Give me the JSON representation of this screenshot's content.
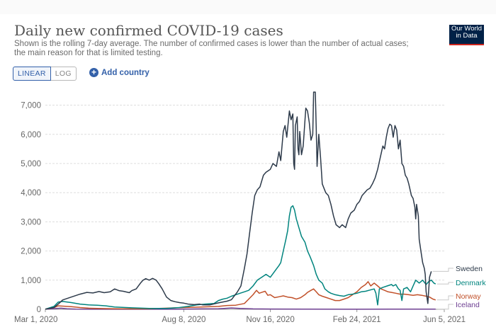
{
  "header": {
    "title": "Daily new confirmed COVID-19 cases",
    "subtitle": "Shown is the rolling 7-day average. The number of confirmed cases is lower than the number of actual cases; the main reason for that is limited testing."
  },
  "logo": {
    "line1": "Our World",
    "line2": "in Data"
  },
  "controls": {
    "linear_label": "LINEAR",
    "log_label": "LOG",
    "add_country_label": "Add country"
  },
  "colors": {
    "Sweden": "#2d3a4a",
    "Denmark": "#00847e",
    "Norway": "#c15029",
    "Iceland": "#6d3e91"
  },
  "chart_data": {
    "type": "line",
    "title": "Daily new confirmed COVID-19 cases",
    "xlabel": "",
    "ylabel": "",
    "ylim": [
      0,
      7500
    ],
    "y_ticks": [
      0,
      1000,
      2000,
      3000,
      4000,
      5000,
      6000,
      7000
    ],
    "y_tick_labels": [
      "0",
      "1,000",
      "2,000",
      "3,000",
      "4,000",
      "5,000",
      "6,000",
      "7,000"
    ],
    "x_ticks": [
      {
        "day": 0,
        "label": "Mar 1, 2020"
      },
      {
        "day": 160,
        "label": "Aug 8, 2020"
      },
      {
        "day": 260,
        "label": "Nov 16, 2020"
      },
      {
        "day": 360,
        "label": "Feb 24, 2021"
      },
      {
        "day": 461,
        "label": "Jun 5, 2021"
      }
    ],
    "x_unit": "days since Mar 1, 2020",
    "xlim": [
      0,
      461
    ],
    "series": [
      {
        "name": "Sweden",
        "points": [
          [
            0,
            5
          ],
          [
            10,
            60
          ],
          [
            15,
            180
          ],
          [
            20,
            320
          ],
          [
            30,
            420
          ],
          [
            40,
            520
          ],
          [
            48,
            580
          ],
          [
            55,
            560
          ],
          [
            62,
            610
          ],
          [
            68,
            570
          ],
          [
            75,
            600
          ],
          [
            80,
            700
          ],
          [
            85,
            640
          ],
          [
            90,
            620
          ],
          [
            97,
            570
          ],
          [
            100,
            640
          ],
          [
            105,
            700
          ],
          [
            110,
            900
          ],
          [
            113,
            1000
          ],
          [
            116,
            1050
          ],
          [
            120,
            1000
          ],
          [
            124,
            1060
          ],
          [
            128,
            1000
          ],
          [
            131,
            880
          ],
          [
            135,
            700
          ],
          [
            140,
            420
          ],
          [
            145,
            300
          ],
          [
            150,
            260
          ],
          [
            155,
            230
          ],
          [
            160,
            210
          ],
          [
            165,
            180
          ],
          [
            172,
            160
          ],
          [
            178,
            180
          ],
          [
            182,
            150
          ],
          [
            190,
            150
          ],
          [
            200,
            220
          ],
          [
            210,
            280
          ],
          [
            215,
            330
          ],
          [
            222,
            600
          ],
          [
            226,
            800
          ],
          [
            230,
            1400
          ],
          [
            233,
            1900
          ],
          [
            236,
            2600
          ],
          [
            239,
            3300
          ],
          [
            242,
            3900
          ],
          [
            245,
            4100
          ],
          [
            248,
            4200
          ],
          [
            252,
            4600
          ],
          [
            255,
            4700
          ],
          [
            260,
            4800
          ],
          [
            263,
            5000
          ],
          [
            267,
            4900
          ],
          [
            270,
            5400
          ],
          [
            272,
            5100
          ],
          [
            275,
            6100
          ],
          [
            277,
            6300
          ],
          [
            279,
            5900
          ],
          [
            282,
            6800
          ],
          [
            284,
            6500
          ],
          [
            286,
            6700
          ],
          [
            287,
            5000
          ],
          [
            288,
            4800
          ],
          [
            289,
            6300
          ],
          [
            291,
            6600
          ],
          [
            292,
            5500
          ],
          [
            293,
            5300
          ],
          [
            294,
            6100
          ],
          [
            295,
            5700
          ],
          [
            296,
            5300
          ],
          [
            298,
            5600
          ],
          [
            301,
            6900
          ],
          [
            303,
            6800
          ],
          [
            305,
            6400
          ],
          [
            307,
            5800
          ],
          [
            309,
            6000
          ],
          [
            310,
            7450
          ],
          [
            312,
            7450
          ],
          [
            313,
            6200
          ],
          [
            314,
            4900
          ],
          [
            316,
            6000
          ],
          [
            318,
            5200
          ],
          [
            320,
            4300
          ],
          [
            324,
            4000
          ],
          [
            327,
            3900
          ],
          [
            330,
            3600
          ],
          [
            333,
            3200
          ],
          [
            336,
            2900
          ],
          [
            340,
            2800
          ],
          [
            343,
            2900
          ],
          [
            347,
            2800
          ],
          [
            350,
            3100
          ],
          [
            353,
            3300
          ],
          [
            357,
            3400
          ],
          [
            360,
            3600
          ],
          [
            363,
            3700
          ],
          [
            366,
            3900
          ],
          [
            369,
            4000
          ],
          [
            372,
            4100
          ],
          [
            375,
            4150
          ],
          [
            378,
            4300
          ],
          [
            381,
            4500
          ],
          [
            384,
            4800
          ],
          [
            387,
            5200
          ],
          [
            390,
            5600
          ],
          [
            392,
            5500
          ],
          [
            394,
            5900
          ],
          [
            396,
            6200
          ],
          [
            398,
            6350
          ],
          [
            400,
            6300
          ],
          [
            402,
            5900
          ],
          [
            404,
            6300
          ],
          [
            406,
            6150
          ],
          [
            408,
            5500
          ],
          [
            410,
            5800
          ],
          [
            412,
            5000
          ],
          [
            414,
            4900
          ],
          [
            416,
            4600
          ],
          [
            418,
            4500
          ],
          [
            420,
            4300
          ],
          [
            423,
            3900
          ],
          [
            425,
            3800
          ],
          [
            427,
            3500
          ],
          [
            428,
            3100
          ],
          [
            429,
            3600
          ],
          [
            431,
            3200
          ],
          [
            432,
            2400
          ],
          [
            434,
            2000
          ],
          [
            436,
            1600
          ],
          [
            438,
            1400
          ],
          [
            439,
            1200
          ],
          [
            440,
            600
          ],
          [
            441,
            400
          ],
          [
            442,
            200
          ],
          [
            444,
            1100
          ],
          [
            446,
            1300
          ]
        ]
      },
      {
        "name": "Denmark",
        "points": [
          [
            0,
            5
          ],
          [
            10,
            100
          ],
          [
            15,
            250
          ],
          [
            20,
            270
          ],
          [
            30,
            230
          ],
          [
            40,
            180
          ],
          [
            50,
            150
          ],
          [
            60,
            140
          ],
          [
            70,
            120
          ],
          [
            80,
            80
          ],
          [
            100,
            50
          ],
          [
            120,
            30
          ],
          [
            140,
            30
          ],
          [
            155,
            60
          ],
          [
            165,
            100
          ],
          [
            175,
            150
          ],
          [
            185,
            180
          ],
          [
            195,
            200
          ],
          [
            200,
            300
          ],
          [
            205,
            350
          ],
          [
            210,
            380
          ],
          [
            215,
            450
          ],
          [
            220,
            500
          ],
          [
            225,
            550
          ],
          [
            230,
            600
          ],
          [
            235,
            650
          ],
          [
            240,
            800
          ],
          [
            245,
            1000
          ],
          [
            250,
            1100
          ],
          [
            255,
            1200
          ],
          [
            260,
            1100
          ],
          [
            265,
            1300
          ],
          [
            270,
            1500
          ],
          [
            272,
            1600
          ],
          [
            275,
            2000
          ],
          [
            278,
            2400
          ],
          [
            280,
            2700
          ],
          [
            282,
            3200
          ],
          [
            284,
            3500
          ],
          [
            286,
            3550
          ],
          [
            288,
            3400
          ],
          [
            290,
            3100
          ],
          [
            293,
            2800
          ],
          [
            296,
            2500
          ],
          [
            300,
            2300
          ],
          [
            303,
            2000
          ],
          [
            306,
            1800
          ],
          [
            310,
            1500
          ],
          [
            313,
            1200
          ],
          [
            316,
            1000
          ],
          [
            320,
            900
          ],
          [
            323,
            700
          ],
          [
            327,
            600
          ],
          [
            330,
            550
          ],
          [
            335,
            500
          ],
          [
            340,
            470
          ],
          [
            345,
            450
          ],
          [
            350,
            500
          ],
          [
            355,
            520
          ],
          [
            360,
            550
          ],
          [
            365,
            600
          ],
          [
            370,
            620
          ],
          [
            375,
            660
          ],
          [
            380,
            700
          ],
          [
            382,
            550
          ],
          [
            384,
            150
          ],
          [
            386,
            700
          ],
          [
            390,
            750
          ],
          [
            395,
            800
          ],
          [
            400,
            850
          ],
          [
            402,
            800
          ],
          [
            405,
            850
          ],
          [
            408,
            700
          ],
          [
            410,
            650
          ],
          [
            412,
            300
          ],
          [
            414,
            700
          ],
          [
            418,
            750
          ],
          [
            422,
            600
          ],
          [
            425,
            800
          ],
          [
            428,
            1000
          ],
          [
            432,
            900
          ],
          [
            436,
            1000
          ],
          [
            440,
            850
          ],
          [
            443,
            950
          ],
          [
            446,
            1000
          ],
          [
            449,
            900
          ],
          [
            451,
            870
          ]
        ]
      },
      {
        "name": "Norway",
        "points": [
          [
            0,
            10
          ],
          [
            10,
            60
          ],
          [
            15,
            120
          ],
          [
            20,
            110
          ],
          [
            30,
            90
          ],
          [
            40,
            60
          ],
          [
            50,
            40
          ],
          [
            60,
            30
          ],
          [
            80,
            20
          ],
          [
            100,
            15
          ],
          [
            120,
            20
          ],
          [
            140,
            40
          ],
          [
            160,
            60
          ],
          [
            180,
            80
          ],
          [
            200,
            100
          ],
          [
            210,
            130
          ],
          [
            220,
            140
          ],
          [
            230,
            200
          ],
          [
            235,
            350
          ],
          [
            240,
            500
          ],
          [
            244,
            650
          ],
          [
            247,
            550
          ],
          [
            250,
            580
          ],
          [
            254,
            620
          ],
          [
            257,
            480
          ],
          [
            260,
            500
          ],
          [
            265,
            400
          ],
          [
            270,
            430
          ],
          [
            275,
            460
          ],
          [
            280,
            420
          ],
          [
            285,
            400
          ],
          [
            290,
            350
          ],
          [
            295,
            400
          ],
          [
            300,
            500
          ],
          [
            303,
            580
          ],
          [
            307,
            650
          ],
          [
            310,
            700
          ],
          [
            313,
            600
          ],
          [
            316,
            500
          ],
          [
            320,
            450
          ],
          [
            325,
            400
          ],
          [
            330,
            350
          ],
          [
            335,
            300
          ],
          [
            340,
            300
          ],
          [
            345,
            350
          ],
          [
            350,
            400
          ],
          [
            355,
            500
          ],
          [
            360,
            600
          ],
          [
            365,
            750
          ],
          [
            370,
            850
          ],
          [
            373,
            950
          ],
          [
            376,
            800
          ],
          [
            380,
            900
          ],
          [
            384,
            800
          ],
          [
            388,
            700
          ],
          [
            392,
            650
          ],
          [
            396,
            600
          ],
          [
            400,
            580
          ],
          [
            405,
            550
          ],
          [
            410,
            520
          ],
          [
            415,
            520
          ],
          [
            420,
            500
          ],
          [
            425,
            480
          ],
          [
            430,
            500
          ],
          [
            435,
            480
          ],
          [
            440,
            450
          ],
          [
            444,
            420
          ],
          [
            448,
            350
          ],
          [
            451,
            320
          ]
        ]
      },
      {
        "name": "Iceland",
        "points": [
          [
            0,
            2
          ],
          [
            10,
            25
          ],
          [
            18,
            40
          ],
          [
            25,
            20
          ],
          [
            35,
            5
          ],
          [
            60,
            2
          ],
          [
            150,
            2
          ],
          [
            165,
            10
          ],
          [
            180,
            15
          ],
          [
            200,
            20
          ],
          [
            215,
            45
          ],
          [
            225,
            30
          ],
          [
            240,
            15
          ],
          [
            260,
            10
          ],
          [
            300,
            5
          ],
          [
            350,
            3
          ],
          [
            400,
            5
          ],
          [
            451,
            5
          ]
        ]
      }
    ]
  }
}
